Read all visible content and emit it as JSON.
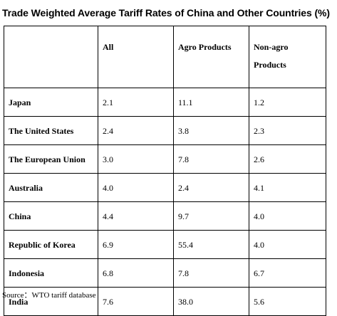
{
  "title": "Trade Weighted Average Tariff Rates of China and Other Countries (%)",
  "table": {
    "headers": [
      "",
      "All",
      "Agro Products",
      "Non-agro Products"
    ],
    "rows": [
      {
        "country": "Japan",
        "all": "2.1",
        "agro": "11.1",
        "nonagro": "1.2"
      },
      {
        "country": "The United States",
        "all": "2.4",
        "agro": "3.8",
        "nonagro": "2.3"
      },
      {
        "country": "The European Union",
        "all": "3.0",
        "agro": "7.8",
        "nonagro": "2.6"
      },
      {
        "country": "Australia",
        "all": "4.0",
        "agro": "2.4",
        "nonagro": "4.1"
      },
      {
        "country": "China",
        "all": "4.4",
        "agro": "9.7",
        "nonagro": "4.0"
      },
      {
        "country": "Republic of Korea",
        "all": "6.9",
        "agro": "55.4",
        "nonagro": "4.0"
      },
      {
        "country": "Indonesia",
        "all": "6.8",
        "agro": "7.8",
        "nonagro": "6.7"
      },
      {
        "country": "India",
        "all": "7.6",
        "agro": "38.0",
        "nonagro": "5.6"
      }
    ]
  },
  "source": "Source：WTO tariff database"
}
